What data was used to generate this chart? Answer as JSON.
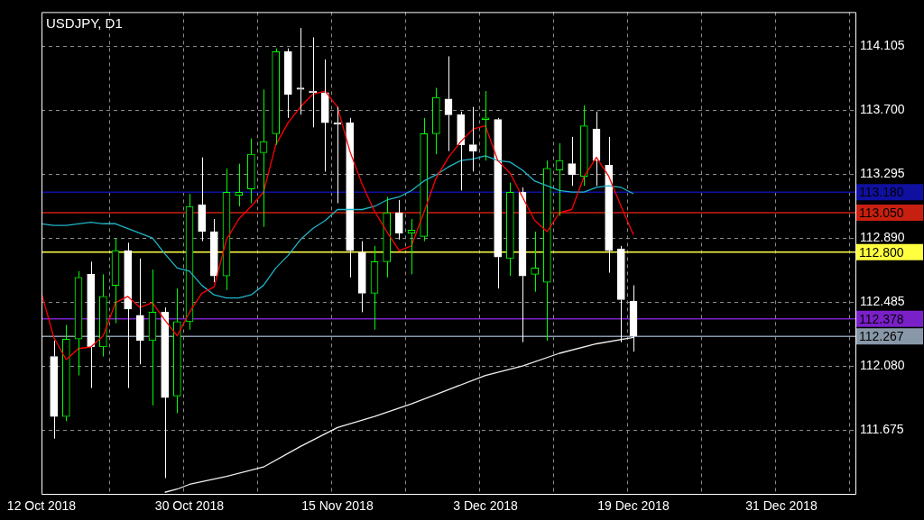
{
  "chart_data": {
    "type": "candlestick",
    "title": "USDJPY, D1",
    "colors": [
      null,
      "#ffffff",
      "#00ff00",
      "#00ff00",
      "#ffffff",
      "#00ff00",
      "#00ff00",
      "#ffffff",
      "#ffffff",
      "#00ff00",
      "#ffffff",
      "#00ff00",
      "#00ff00",
      "#ffffff",
      "#ffffff",
      "#00ff00",
      "#00ff00",
      "#00ff00",
      "#00ff00",
      "#00ff00",
      "#ffffff",
      "#ffffff",
      "#ffffff",
      "#ffffff",
      "#ffffff",
      "#ffffff",
      "#ffffff",
      "#00ff00",
      "#00ff00",
      "#ffffff",
      "#00ff00",
      "#00ff00",
      "#00ff00",
      "#ffffff",
      "#ffffff",
      "#ffffff",
      "#00ff00",
      "#ffffff",
      "#00ff00",
      "#ffffff",
      "#00ff00",
      "#00ff00",
      "#00ff00",
      "#ffffff",
      "#00ff00",
      "#ffffff",
      "#ffffff",
      "#ffffff",
      "#ffffff",
      null,
      null,
      null,
      null,
      null,
      null,
      null,
      null,
      null,
      null,
      null,
      null,
      null,
      null,
      null,
      null,
      null,
      null
    ],
    "categories": [
      "12 Oct 2018",
      null,
      null,
      null,
      null,
      null,
      null,
      null,
      null,
      null,
      null,
      null,
      "30 Oct 2018",
      null,
      null,
      null,
      null,
      null,
      null,
      null,
      null,
      null,
      null,
      null,
      "15 Nov 2018",
      null,
      null,
      null,
      null,
      null,
      null,
      null,
      null,
      null,
      null,
      null,
      "3 Dec 2018",
      null,
      null,
      null,
      null,
      null,
      null,
      null,
      null,
      null,
      null,
      null,
      "19 Dec 2018",
      null,
      null,
      null,
      null,
      null,
      null,
      null,
      null,
      null,
      null,
      null,
      "31 Dec 2018",
      null,
      null,
      null,
      null,
      null,
      null
    ],
    "ohlc": [
      null,
      [
        112.14,
        112.24,
        111.62,
        111.76
      ],
      [
        111.76,
        112.34,
        111.73,
        112.25
      ],
      [
        112.25,
        112.68,
        112.02,
        112.64
      ],
      [
        112.66,
        112.74,
        111.94,
        112.2
      ],
      [
        112.2,
        112.66,
        112.14,
        112.52
      ],
      [
        112.59,
        112.89,
        112.35,
        112.81
      ],
      [
        112.81,
        112.86,
        111.94,
        112.44
      ],
      [
        112.4,
        112.76,
        112.09,
        112.24
      ],
      [
        112.24,
        112.69,
        111.83,
        112.42
      ],
      [
        112.42,
        112.45,
        111.37,
        111.88
      ],
      [
        111.89,
        112.57,
        111.78,
        112.36
      ],
      [
        112.36,
        113.17,
        112.31,
        113.09
      ],
      [
        113.1,
        113.4,
        112.87,
        112.93
      ],
      [
        112.93,
        113.01,
        112.61,
        112.65
      ],
      [
        112.65,
        113.33,
        112.56,
        113.18
      ],
      [
        113.16,
        113.36,
        113.09,
        113.18
      ],
      [
        113.2,
        113.52,
        113.11,
        113.42
      ],
      [
        113.43,
        113.83,
        112.96,
        113.5
      ],
      [
        113.55,
        114.09,
        113.48,
        114.07
      ],
      [
        114.07,
        114.09,
        113.65,
        113.8
      ],
      [
        113.84,
        114.22,
        113.67,
        113.83
      ],
      [
        113.82,
        114.16,
        113.59,
        113.81
      ],
      [
        113.81,
        114.02,
        113.31,
        113.62
      ],
      [
        113.62,
        113.72,
        113.11,
        113.61
      ],
      [
        113.62,
        113.65,
        112.64,
        112.81
      ],
      [
        112.8,
        112.87,
        112.42,
        112.54
      ],
      [
        112.54,
        112.84,
        112.31,
        112.74
      ],
      [
        112.74,
        113.15,
        112.64,
        113.05
      ],
      [
        113.05,
        113.13,
        112.88,
        112.92
      ],
      [
        112.92,
        113.01,
        112.66,
        112.94
      ],
      [
        112.9,
        113.65,
        112.87,
        113.55
      ],
      [
        113.55,
        113.84,
        113.42,
        113.78
      ],
      [
        113.77,
        114.04,
        113.44,
        113.67
      ],
      [
        113.67,
        113.69,
        113.19,
        113.48
      ],
      [
        113.48,
        113.72,
        113.31,
        113.44
      ],
      [
        113.64,
        113.82,
        113.38,
        113.65
      ],
      [
        113.64,
        113.65,
        112.57,
        112.77
      ],
      [
        112.76,
        113.24,
        112.65,
        113.18
      ],
      [
        113.18,
        113.21,
        112.23,
        112.65
      ],
      [
        112.66,
        112.93,
        112.55,
        112.7
      ],
      [
        112.61,
        113.38,
        112.24,
        113.33
      ],
      [
        113.32,
        113.49,
        113.03,
        113.38
      ],
      [
        113.36,
        113.53,
        113.22,
        113.29
      ],
      [
        113.28,
        113.73,
        113.22,
        113.6
      ],
      [
        113.58,
        113.69,
        113.22,
        113.38
      ],
      [
        113.35,
        113.53,
        112.67,
        112.81
      ],
      [
        112.82,
        112.84,
        112.23,
        112.5
      ],
      [
        112.49,
        112.59,
        112.17,
        112.27
      ],
      null,
      null,
      null,
      null,
      null,
      null,
      null,
      null,
      null,
      null,
      null,
      null,
      null,
      null,
      null,
      null,
      null,
      null
    ],
    "series": [
      {
        "type": "line",
        "color": "#ff0000",
        "values": [
          112.54,
          112.26,
          112.12,
          112.19,
          112.2,
          112.27,
          112.48,
          112.52,
          112.45,
          112.48,
          112.37,
          112.27,
          112.42,
          112.54,
          112.58,
          112.88,
          113.01,
          113.09,
          113.18,
          113.48,
          113.62,
          113.72,
          113.8,
          113.82,
          113.72,
          113.44,
          113.23,
          113.06,
          112.93,
          112.81,
          112.84,
          113.05,
          113.27,
          113.4,
          113.5,
          113.58,
          113.6,
          113.38,
          113.3,
          113.15,
          113,
          112.93,
          113.05,
          113.07,
          113.28,
          113.4,
          113.28,
          113.09,
          112.91,
          null,
          null,
          null,
          null,
          null,
          null,
          null,
          null,
          null,
          null,
          null,
          null,
          null,
          null,
          null,
          null,
          null,
          null
        ]
      },
      {
        "type": "line",
        "color": "#20b4c8",
        "values": [
          112.98,
          112.97,
          112.97,
          112.98,
          112.99,
          112.98,
          112.98,
          112.95,
          112.92,
          112.89,
          112.79,
          112.7,
          112.68,
          112.59,
          112.53,
          112.51,
          112.51,
          112.53,
          112.59,
          112.7,
          112.78,
          112.88,
          112.95,
          113,
          113.07,
          113.07,
          113.07,
          113.09,
          113.13,
          113.15,
          113.19,
          113.25,
          113.29,
          113.34,
          113.38,
          113.39,
          113.41,
          113.38,
          113.37,
          113.32,
          113.25,
          113.22,
          113.19,
          113.18,
          113.18,
          113.21,
          113.22,
          113.21,
          113.17,
          null,
          null,
          null,
          null,
          null,
          null,
          null,
          null,
          null,
          null,
          null,
          null,
          null,
          null,
          null,
          null,
          null,
          null
        ]
      },
      {
        "type": "line",
        "color": "#f0f0f0",
        "values": [
          null,
          null,
          null,
          null,
          null,
          null,
          null,
          null,
          null,
          null,
          111.28,
          111.3,
          111.33,
          null,
          null,
          111.38,
          null,
          null,
          111.44,
          null,
          null,
          111.57,
          null,
          null,
          111.69,
          null,
          null,
          111.76,
          null,
          null,
          111.84,
          null,
          null,
          111.93,
          null,
          null,
          112.02,
          null,
          null,
          112.08,
          null,
          null,
          112.16,
          null,
          null,
          112.22,
          null,
          null,
          112.26,
          null,
          null,
          null,
          null,
          null,
          null,
          null,
          null,
          null,
          null,
          null,
          null,
          null,
          null,
          null,
          null,
          null,
          null
        ]
      }
    ],
    "ylim": [
      111.27,
      114.32
    ],
    "yticks": [
      111.675,
      {
        "value": 112.08,
        "label": "112.080"
      },
      112.485,
      {
        "value": 112.89,
        "label": "112.890"
      },
      113.295,
      {
        "value": 113.7,
        "label": "113.700"
      },
      114.105
    ],
    "ref_lines": [
      {
        "axis": "y",
        "value": 113.18,
        "label": "113.180",
        "color": "#1010a0"
      },
      {
        "axis": "y",
        "value": 113.05,
        "label": "113.050",
        "color": "#c82010"
      },
      {
        "axis": "y",
        "value": 112.8,
        "label": "112.800",
        "color": "#ffff40"
      },
      {
        "axis": "y",
        "value": 112.378,
        "label": "112.378",
        "color": "#7a20c8"
      },
      {
        "axis": "y",
        "value": 112.267,
        "label": "112.267",
        "color": "#8898a8"
      }
    ],
    "grid": true
  }
}
